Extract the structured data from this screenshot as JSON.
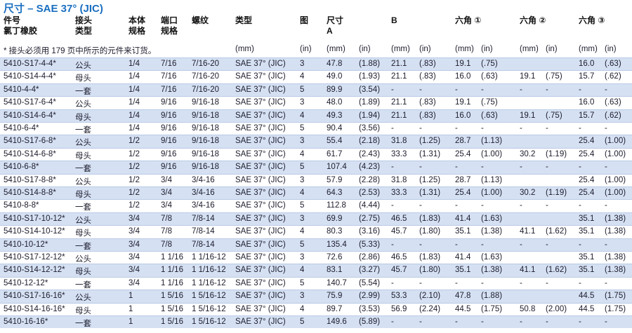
{
  "title": "尺寸 – SAE 37° (JIC)",
  "header": [
    "件号\n氯丁橡胶",
    "接头\n类型",
    "本体\n规格",
    "端口\n规格",
    "螺纹",
    "类型",
    "图",
    "尺寸\nA",
    null,
    "B",
    null,
    "六角 ①",
    null,
    "六角 ②",
    null,
    "六角 ③",
    null
  ],
  "note": "* 接头必须用 179 页中所示的元件来订货。",
  "units": [
    null,
    null,
    null,
    null,
    null,
    "(mm)",
    "(in)",
    "(mm)",
    "(in)",
    "(mm)",
    "(in)",
    "(mm)",
    "(in)",
    "(mm)",
    "(in)",
    "(mm)",
    "(in)"
  ],
  "rows": [
    [
      "5410-S17-4-4*",
      "公头",
      "1/4",
      "7/16",
      "7/16-20",
      "SAE 37° (JIC)",
      "3",
      "47.8",
      "(1.88)",
      "21.1",
      "(.83)",
      "19.1",
      "(.75)",
      null,
      null,
      "16.0",
      "(.63)"
    ],
    [
      "5410-S14-4-4*",
      "母头",
      "1/4",
      "7/16",
      "7/16-20",
      "SAE 37° (JIC)",
      "4",
      "49.0",
      "(1.93)",
      "21.1",
      "(.83)",
      "16.0",
      "(.63)",
      "19.1",
      "(.75)",
      "15.7",
      "(.62)"
    ],
    [
      "5410-4-4*",
      "一套",
      "1/4",
      "7/16",
      "7/16-20",
      "SAE 37° (JIC)",
      "5",
      "89.9",
      "(3.54)",
      "-",
      "-",
      "-",
      "-",
      "-",
      "-",
      "-",
      "-"
    ],
    [
      "5410-S17-6-4*",
      "公头",
      "1/4",
      "9/16",
      "9/16-18",
      "SAE 37° (JIC)",
      "3",
      "48.0",
      "(1.89)",
      "21.1",
      "(.83)",
      "19.1",
      "(.75)",
      null,
      null,
      "16.0",
      "(.63)"
    ],
    [
      "5410-S14-6-4*",
      "母头",
      "1/4",
      "9/16",
      "9/16-18",
      "SAE 37° (JIC)",
      "4",
      "49.3",
      "(1.94)",
      "21.1",
      "(.83)",
      "16.0",
      "(.63)",
      "19.1",
      "(.75)",
      "15.7",
      "(.62)"
    ],
    [
      "5410-6-4*",
      "一套",
      "1/4",
      "9/16",
      "9/16-18",
      "SAE 37° (JIC)",
      "5",
      "90.4",
      "(3.56)",
      "-",
      "-",
      "-",
      "-",
      "-",
      "-",
      "-",
      "-"
    ],
    [
      "5410-S17-6-8*",
      "公头",
      "1/2",
      "9/16",
      "9/16-18",
      "SAE 37° (JIC)",
      "3",
      "55.4",
      "(2.18)",
      "31.8",
      "(1.25)",
      "28.7",
      "(1.13)",
      null,
      null,
      "25.4",
      "(1.00)"
    ],
    [
      "5410-S14-6-8*",
      "母头",
      "1/2",
      "9/16",
      "9/16-18",
      "SAE 37° (JIC)",
      "4",
      "61.7",
      "(2.43)",
      "33.3",
      "(1.31)",
      "25.4",
      "(1.00)",
      "30.2",
      "(1.19)",
      "25.4",
      "(1.00)"
    ],
    [
      "5410-6-8*",
      "一套",
      "1/2",
      "9/16",
      "9/16-18",
      "SAE 37° (JIC)",
      "5",
      "107.4",
      "(4.23)",
      "-",
      "-",
      "-",
      "-",
      "-",
      "-",
      "-",
      "-"
    ],
    [
      "5410-S17-8-8*",
      "公头",
      "1/2",
      "3/4",
      "3/4-16",
      "SAE 37° (JIC)",
      "3",
      "57.9",
      "(2.28)",
      "31.8",
      "(1.25)",
      "28.7",
      "(1.13)",
      null,
      null,
      "25.4",
      "(1.00)"
    ],
    [
      "5410-S14-8-8*",
      "母头",
      "1/2",
      "3/4",
      "3/4-16",
      "SAE 37° (JIC)",
      "4",
      "64.3",
      "(2.53)",
      "33.3",
      "(1.31)",
      "25.4",
      "(1.00)",
      "30.2",
      "(1.19)",
      "25.4",
      "(1.00)"
    ],
    [
      "5410-8-8*",
      "一套",
      "1/2",
      "3/4",
      "3/4-16",
      "SAE 37° (JIC)",
      "5",
      "112.8",
      "(4.44)",
      "-",
      "-",
      "-",
      "-",
      "-",
      "-",
      "-",
      "-"
    ],
    [
      "5410-S17-10-12*",
      "公头",
      "3/4",
      "7/8",
      "7/8-14",
      "SAE 37° (JIC)",
      "3",
      "69.9",
      "(2.75)",
      "46.5",
      "(1.83)",
      "41.4",
      "(1.63)",
      null,
      null,
      "35.1",
      "(1.38)"
    ],
    [
      "5410-S14-10-12*",
      "母头",
      "3/4",
      "7/8",
      "7/8-14",
      "SAE 37° (JIC)",
      "4",
      "80.3",
      "(3.16)",
      "45.7",
      "(1.80)",
      "35.1",
      "(1.38)",
      "41.1",
      "(1.62)",
      "35.1",
      "(1.38)"
    ],
    [
      "5410-10-12*",
      "一套",
      "3/4",
      "7/8",
      "7/8-14",
      "SAE 37° (JIC)",
      "5",
      "135.4",
      "(5.33)",
      "-",
      "-",
      "-",
      "-",
      "-",
      "-",
      "-",
      "-"
    ],
    [
      "5410-S17-12-12*",
      "公头",
      "3/4",
      "1 1/16",
      "1 1/16-12",
      "SAE 37° (JIC)",
      "3",
      "72.6",
      "(2.86)",
      "46.5",
      "(1.83)",
      "41.4",
      "(1.63)",
      null,
      null,
      "35.1",
      "(1.38)"
    ],
    [
      "5410-S14-12-12*",
      "母头",
      "3/4",
      "1 1/16",
      "1 1/16-12",
      "SAE 37° (JIC)",
      "4",
      "83.1",
      "(3.27)",
      "45.7",
      "(1.80)",
      "35.1",
      "(1.38)",
      "41.1",
      "(1.62)",
      "35.1",
      "(1.38)"
    ],
    [
      "5410-12-12*",
      "一套",
      "3/4",
      "1 1/16",
      "1 1/16-12",
      "SAE 37° (JIC)",
      "5",
      "140.7",
      "(5.54)",
      "-",
      "-",
      "-",
      "-",
      "-",
      "-",
      "-",
      "-"
    ],
    [
      "5410-S17-16-16*",
      "公头",
      "1",
      "1 5/16",
      "1 5/16-12",
      "SAE 37° (JIC)",
      "3",
      "75.9",
      "(2.99)",
      "53.3",
      "(2.10)",
      "47.8",
      "(1.88)",
      null,
      null,
      "44.5",
      "(1.75)"
    ],
    [
      "5410-S14-16-16*",
      "母头",
      "1",
      "1 5/16",
      "1 5/16-12",
      "SAE 37° (JIC)",
      "4",
      "89.7",
      "(3.53)",
      "56.9",
      "(2.24)",
      "44.5",
      "(1.75)",
      "50.8",
      "(2.00)",
      "44.5",
      "(1.75)"
    ],
    [
      "5410-16-16*",
      "一套",
      "1",
      "1 5/16",
      "1 5/16-12",
      "SAE 37° (JIC)",
      "5",
      "149.6",
      "(5.89)",
      "-",
      "-",
      "-",
      "-",
      "-",
      "-",
      "-",
      "-"
    ]
  ]
}
